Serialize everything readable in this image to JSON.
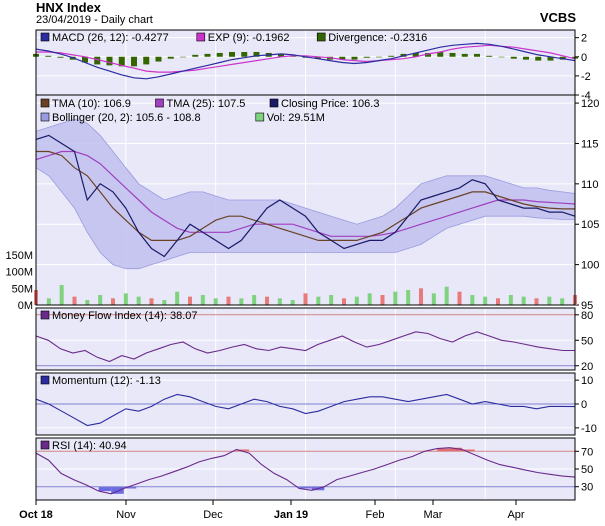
{
  "header": {
    "title": "HNX Index",
    "subtitle": "23/04/2019 - Daily chart",
    "brand": "VCBS"
  },
  "colors": {
    "panel_bg": "#e8e8f8",
    "panel_border": "#000000",
    "grid": "#ffffff",
    "macd": "#2c2ca0",
    "exp": "#cc33cc",
    "divergence": "#336600",
    "tma10": "#6b4226",
    "tma25": "#a040c0",
    "close": "#1a1a66",
    "bollinger_fill": "#c0c0ee",
    "bollinger_line": "#9a9ae0",
    "vol_up": "#7fd37f",
    "vol_down": "#e87a7a",
    "mfi": "#6a2a8a",
    "momentum": "#2c2ca0",
    "rsi": "#6a2a8a",
    "rsi_over": "#e05555",
    "rsi_under": "#5555e0",
    "ref_red": "#d08080",
    "ref_blue": "#8080d0"
  },
  "chart_data": [
    {
      "type": "bar",
      "panel": "macd",
      "legend": [
        {
          "name": "MACD (26, 12): -0.4277",
          "color": "#2c2ca0"
        },
        {
          "name": "EXP (9): -0.1962",
          "color": "#cc33cc"
        },
        {
          "name": "Divergence: -0.2316",
          "color": "#336600"
        }
      ],
      "ylim": [
        -4,
        2.8
      ],
      "yticks": [
        "2",
        "0",
        "-2",
        "-4"
      ],
      "series": [
        {
          "name": "MACD",
          "values": [
            0.8,
            0.6,
            0.3,
            -0.1,
            -0.6,
            -1.1,
            -1.5,
            -1.9,
            -2.2,
            -2.3,
            -2.1,
            -1.8,
            -1.5,
            -1.2,
            -0.9,
            -0.6,
            -0.3,
            -0.1,
            0.1,
            0.2,
            0.3,
            0.2,
            0.0,
            -0.2,
            -0.4,
            -0.6,
            -0.7,
            -0.6,
            -0.4,
            -0.2,
            0.1,
            0.4,
            0.7,
            1.0,
            1.2,
            1.3,
            1.4,
            1.3,
            1.1,
            0.8,
            0.5,
            0.2,
            0.0,
            -0.2,
            -0.4
          ]
        },
        {
          "name": "EXP",
          "values": [
            0.5,
            0.5,
            0.4,
            0.2,
            0.0,
            -0.3,
            -0.6,
            -0.9,
            -1.2,
            -1.5,
            -1.6,
            -1.6,
            -1.5,
            -1.4,
            -1.2,
            -1.0,
            -0.8,
            -0.6,
            -0.4,
            -0.2,
            0.0,
            0.1,
            0.1,
            0.0,
            -0.1,
            -0.3,
            -0.4,
            -0.5,
            -0.4,
            -0.3,
            -0.2,
            0.0,
            0.3,
            0.5,
            0.8,
            1.0,
            1.1,
            1.2,
            1.1,
            1.0,
            0.8,
            0.6,
            0.4,
            0.1,
            -0.2
          ]
        },
        {
          "name": "Divergence",
          "values": [
            0.3,
            0.1,
            -0.1,
            -0.3,
            -0.6,
            -0.8,
            -0.9,
            -1.0,
            -1.0,
            -0.8,
            -0.5,
            -0.2,
            0.0,
            0.2,
            0.3,
            0.4,
            0.5,
            0.5,
            0.5,
            0.4,
            0.3,
            0.1,
            -0.1,
            -0.2,
            -0.3,
            -0.3,
            -0.3,
            -0.1,
            0.0,
            0.1,
            0.3,
            0.4,
            0.4,
            0.5,
            0.4,
            0.3,
            0.3,
            0.1,
            0.0,
            -0.2,
            -0.3,
            -0.4,
            -0.4,
            -0.3,
            -0.2
          ]
        }
      ]
    },
    {
      "type": "line",
      "panel": "price",
      "legend": [
        {
          "name": "TMA (10): 106.9",
          "color": "#6b4226"
        },
        {
          "name": "TMA (25): 107.5",
          "color": "#a040c0"
        },
        {
          "name": "Closing Price: 106.3",
          "color": "#1a1a66"
        },
        {
          "name": "Bollinger (20, 2): 105.6 - 108.8",
          "color": "#9a9ae0"
        },
        {
          "name": "Vol: 29.51M",
          "color": "#7fd37f"
        }
      ],
      "ylim": [
        95,
        121
      ],
      "yticks": [
        "120",
        "115",
        "110",
        "105",
        "100",
        "95"
      ],
      "vol_ticks": [
        "150M",
        "100M",
        "50M",
        "0M"
      ],
      "vol_max": 150,
      "series": [
        {
          "name": "Closing Price",
          "values": [
            115.5,
            116,
            115,
            114,
            108,
            110,
            109,
            107,
            104,
            102,
            101,
            103,
            105,
            104,
            103,
            102,
            103,
            105,
            107,
            108,
            107,
            106,
            104,
            103,
            102,
            102.5,
            103,
            103,
            104,
            106,
            108,
            108.5,
            109,
            109.5,
            110.5,
            110,
            108,
            107.5,
            107,
            107,
            106.5,
            106.5,
            106
          ]
        },
        {
          "name": "TMA (10)",
          "values": [
            114,
            114,
            113.5,
            112,
            111,
            109,
            107,
            105.5,
            104,
            103,
            103,
            103,
            103.5,
            104.5,
            105.5,
            106,
            106,
            105.5,
            105,
            104.5,
            104,
            103.5,
            103,
            103,
            103,
            103,
            103.5,
            104,
            105,
            106,
            107,
            107.5,
            108,
            108.5,
            109,
            109,
            108.5,
            108,
            107.5,
            107.2,
            107,
            106.9,
            106.9
          ]
        },
        {
          "name": "TMA (25)",
          "values": [
            113,
            113.5,
            114,
            114,
            113.5,
            112.5,
            111,
            109.5,
            108,
            106.5,
            105.5,
            104.5,
            104,
            104,
            104,
            104,
            104.5,
            105,
            105,
            105,
            105,
            104.5,
            104,
            103.5,
            103.5,
            103.5,
            103.5,
            103.7,
            104,
            104.5,
            105,
            105.5,
            106,
            106.5,
            107,
            107.5,
            108,
            108,
            108,
            107.8,
            107.7,
            107.6,
            107.5
          ]
        },
        {
          "name": "Bollinger Upper",
          "values": [
            116.5,
            117,
            117.5,
            118,
            117.5,
            116,
            114,
            112,
            110,
            109,
            108,
            108.5,
            109,
            109,
            108.5,
            108,
            108,
            108,
            108,
            108,
            107.5,
            107,
            106.5,
            106,
            105.5,
            105,
            105.5,
            106,
            107,
            108.5,
            110,
            110.5,
            111,
            111,
            111,
            111,
            110.5,
            110,
            109.5,
            109.5,
            109.2,
            109,
            108.8
          ]
        },
        {
          "name": "Bollinger Lower",
          "values": [
            112,
            111,
            109,
            107,
            104,
            101.5,
            100,
            99.5,
            99.5,
            100,
            100.5,
            101,
            101.5,
            101.5,
            101.5,
            101.5,
            101.5,
            101.5,
            101.5,
            101.5,
            101.5,
            101.5,
            101.5,
            101.5,
            101.5,
            101.5,
            101.5,
            101.5,
            101.5,
            102,
            102.5,
            103.5,
            104.5,
            105,
            105.5,
            106,
            106,
            106,
            106,
            105.8,
            105.7,
            105.6,
            105.6
          ]
        },
        {
          "name": "Vol",
          "values": [
            45,
            20,
            60,
            25,
            15,
            30,
            20,
            35,
            25,
            20,
            15,
            40,
            25,
            30,
            20,
            25,
            20,
            30,
            25,
            20,
            15,
            35,
            25,
            30,
            20,
            25,
            35,
            30,
            40,
            45,
            50,
            35,
            55,
            40,
            30,
            25,
            20,
            30,
            25,
            20,
            25,
            20,
            30
          ]
        }
      ]
    },
    {
      "type": "line",
      "panel": "mfi",
      "legend": [
        {
          "name": "Money Flow Index (14): 38.07",
          "color": "#6a2a8a"
        }
      ],
      "ylim": [
        15,
        88
      ],
      "yticks": [
        "80",
        "50",
        "20"
      ],
      "ref_lines": [
        80,
        20
      ],
      "series": [
        {
          "name": "MFI",
          "values": [
            55,
            50,
            40,
            35,
            38,
            30,
            25,
            32,
            28,
            35,
            40,
            45,
            48,
            40,
            35,
            38,
            42,
            45,
            40,
            38,
            42,
            40,
            38,
            45,
            50,
            55,
            48,
            42,
            45,
            50,
            55,
            60,
            58,
            52,
            48,
            55,
            60,
            55,
            50,
            48,
            45,
            42,
            40,
            38,
            38
          ]
        }
      ]
    },
    {
      "type": "line",
      "panel": "momentum",
      "legend": [
        {
          "name": "Momentum (12): -1.13",
          "color": "#2c2ca0"
        }
      ],
      "ylim": [
        -13,
        13
      ],
      "yticks": [
        "10",
        "0",
        "-10"
      ],
      "ref_lines": [
        0
      ],
      "series": [
        {
          "name": "Momentum",
          "values": [
            2,
            0,
            -3,
            -6,
            -9,
            -8,
            -5,
            -2,
            -3,
            -1,
            2,
            4,
            3,
            1,
            -1,
            -2,
            0,
            2,
            1,
            -1,
            -2,
            -4,
            -3,
            -1,
            1,
            2,
            3,
            3,
            2,
            1,
            2,
            3,
            4,
            2,
            0,
            1,
            0,
            -1,
            -1,
            -2,
            -1,
            -1,
            -1.1
          ]
        }
      ]
    },
    {
      "type": "line",
      "panel": "rsi",
      "legend": [
        {
          "name": "RSI (14): 40.94",
          "color": "#6a2a8a"
        }
      ],
      "ylim": [
        15,
        85
      ],
      "yticks": [
        "70",
        "50",
        "30"
      ],
      "ref_lines": [
        70,
        30
      ],
      "series": [
        {
          "name": "RSI",
          "values": [
            68,
            60,
            45,
            38,
            32,
            25,
            22,
            28,
            33,
            38,
            42,
            47,
            52,
            58,
            62,
            65,
            72,
            68,
            55,
            45,
            38,
            28,
            26,
            30,
            38,
            42,
            46,
            50,
            55,
            60,
            64,
            70,
            73,
            74,
            72,
            66,
            60,
            55,
            52,
            49,
            46,
            44,
            42,
            40.9
          ]
        }
      ]
    }
  ],
  "x_axis": {
    "labels": [
      "Oct 18",
      "Nov",
      "Dec",
      "Jan 19",
      "Feb",
      "Mar",
      "Apr"
    ],
    "bold": [
      true,
      false,
      false,
      true,
      false,
      false,
      false
    ]
  }
}
